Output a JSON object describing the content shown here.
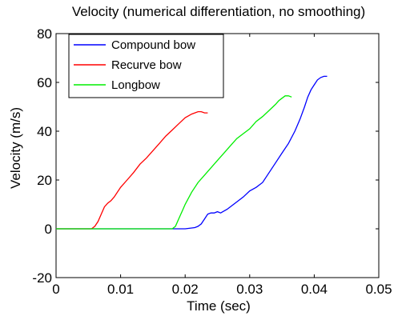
{
  "chart_data": {
    "type": "line",
    "title": "Velocity (numerical differentiation, no smoothing)",
    "xlabel": "Time (sec)",
    "ylabel": "Velocity (m/s)",
    "xlim": [
      0,
      0.05
    ],
    "ylim": [
      -20,
      80
    ],
    "xticks": [
      0,
      0.01,
      0.02,
      0.03,
      0.04,
      0.05
    ],
    "xtick_labels": [
      "0",
      "0.01",
      "0.02",
      "0.03",
      "0.04",
      "0.05"
    ],
    "yticks": [
      -20,
      0,
      20,
      40,
      60,
      80
    ],
    "ytick_labels": [
      "-20",
      "0",
      "20",
      "40",
      "60",
      "80"
    ],
    "grid": false,
    "legend_position": "top-left",
    "series": [
      {
        "name": "Compound bow",
        "color": "#0000ff",
        "x": [
          0,
          0.005,
          0.01,
          0.015,
          0.02,
          0.0215,
          0.022,
          0.0225,
          0.023,
          0.0235,
          0.024,
          0.0245,
          0.025,
          0.0255,
          0.0265,
          0.0275,
          0.028,
          0.029,
          0.03,
          0.031,
          0.0315,
          0.032,
          0.033,
          0.034,
          0.035,
          0.036,
          0.037,
          0.0378,
          0.0385,
          0.039,
          0.0395,
          0.04,
          0.0405,
          0.041,
          0.0415,
          0.042
        ],
        "y": [
          0,
          0,
          0,
          0,
          0,
          0.5,
          1,
          2,
          4,
          6,
          6.5,
          6.5,
          7,
          6.5,
          8,
          10,
          11,
          13,
          15.5,
          17,
          18,
          19,
          23,
          27,
          31,
          35,
          40,
          45,
          50,
          54,
          57,
          59,
          61,
          62,
          62.5,
          62.5
        ]
      },
      {
        "name": "Recurve bow",
        "color": "#ff0000",
        "x": [
          0,
          0.002,
          0.004,
          0.0055,
          0.006,
          0.0065,
          0.007,
          0.0075,
          0.008,
          0.0085,
          0.009,
          0.01,
          0.011,
          0.012,
          0.013,
          0.014,
          0.015,
          0.016,
          0.017,
          0.018,
          0.019,
          0.02,
          0.021,
          0.022,
          0.0225,
          0.023,
          0.0235
        ],
        "y": [
          0,
          0,
          0,
          0,
          1,
          3,
          6,
          9,
          10.5,
          11.5,
          13,
          17,
          20,
          23,
          26.5,
          29,
          32,
          35,
          38,
          40.5,
          43,
          45.5,
          47,
          48,
          48,
          47.5,
          47.5
        ]
      },
      {
        "name": "Longbow",
        "color": "#00ee00",
        "x": [
          0,
          0.005,
          0.01,
          0.015,
          0.018,
          0.0185,
          0.019,
          0.0195,
          0.02,
          0.021,
          0.022,
          0.023,
          0.024,
          0.025,
          0.026,
          0.027,
          0.028,
          0.029,
          0.03,
          0.031,
          0.032,
          0.033,
          0.034,
          0.0345,
          0.035,
          0.0355,
          0.036,
          0.0365
        ],
        "y": [
          0,
          0,
          0,
          0,
          0,
          1,
          4,
          7,
          10,
          15,
          19,
          22,
          25,
          28,
          31,
          34,
          37,
          39,
          41,
          44,
          46,
          48.5,
          51,
          52.5,
          53.5,
          54.5,
          54.5,
          54
        ]
      }
    ]
  }
}
